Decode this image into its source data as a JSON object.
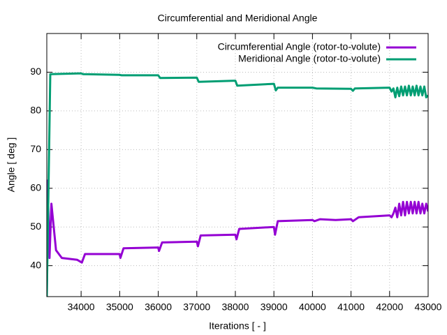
{
  "chart_data": {
    "type": "line",
    "title": "Circumferential and Meridional Angle",
    "xlabel": "Iterations [ - ]",
    "ylabel": "Angle [ deg ]",
    "xlim": [
      33110,
      43000
    ],
    "ylim": [
      32,
      100
    ],
    "xticks": [
      34000,
      35000,
      36000,
      37000,
      38000,
      39000,
      40000,
      41000,
      42000,
      43000
    ],
    "yticks": [
      40,
      50,
      60,
      70,
      80,
      90
    ],
    "grid": true,
    "legend": "top-right",
    "series": [
      {
        "name": "Circumferential Angle (rotor-to-volute)",
        "color": "#9400d3",
        "x": [
          33110,
          33130,
          33180,
          33230,
          33350,
          33500,
          33900,
          34020,
          34100,
          35000,
          35020,
          35100,
          36000,
          36020,
          36100,
          37000,
          37030,
          37100,
          38000,
          38030,
          38100,
          39000,
          39030,
          39100,
          40000,
          40050,
          40200,
          40600,
          41000,
          41050,
          41200,
          42000,
          42050,
          42100,
          42150,
          42200,
          42250,
          42300,
          42350,
          42400,
          42450,
          42500,
          42550,
          42600,
          42650,
          42700,
          42750,
          42800,
          42850,
          42900,
          42950,
          43000
        ],
        "values": [
          32,
          62,
          42,
          56,
          44,
          42,
          41.5,
          40.8,
          43,
          43,
          42,
          44.5,
          44.7,
          43.8,
          46,
          46.2,
          45,
          47.8,
          48,
          46.8,
          49.5,
          50,
          48,
          51.5,
          51.8,
          51.5,
          52,
          51.8,
          52,
          51.5,
          52.5,
          53,
          52.5,
          53.5,
          55,
          52.5,
          56,
          53,
          56.5,
          53,
          56.5,
          53.5,
          56.5,
          53.5,
          56.5,
          53.5,
          56.5,
          53.5,
          56,
          53.5,
          56,
          54
        ]
      },
      {
        "name": "Meridional Angle (rotor-to-volute)",
        "color": "#009e73",
        "x": [
          33110,
          33200,
          34000,
          34050,
          35000,
          35050,
          36000,
          36050,
          37000,
          37050,
          38000,
          38050,
          39000,
          39050,
          39100,
          40000,
          40100,
          41000,
          41050,
          41100,
          42000,
          42050,
          42100,
          42150,
          42200,
          42250,
          42300,
          42350,
          42400,
          42450,
          42500,
          42550,
          42600,
          42650,
          42700,
          42750,
          42800,
          42850,
          42900,
          42950,
          43000
        ],
        "values": [
          32,
          89.5,
          89.7,
          89.5,
          89.3,
          89.2,
          89.2,
          88.5,
          88.6,
          87.5,
          87.8,
          86.5,
          87,
          85.3,
          86,
          86,
          85.8,
          85.7,
          85.2,
          85.8,
          86,
          85,
          85.8,
          83.5,
          86,
          83.8,
          86.3,
          84,
          86.3,
          84,
          86.5,
          84,
          86.3,
          84,
          86.5,
          84,
          86.3,
          84,
          86.3,
          83.5,
          84
        ]
      }
    ]
  }
}
